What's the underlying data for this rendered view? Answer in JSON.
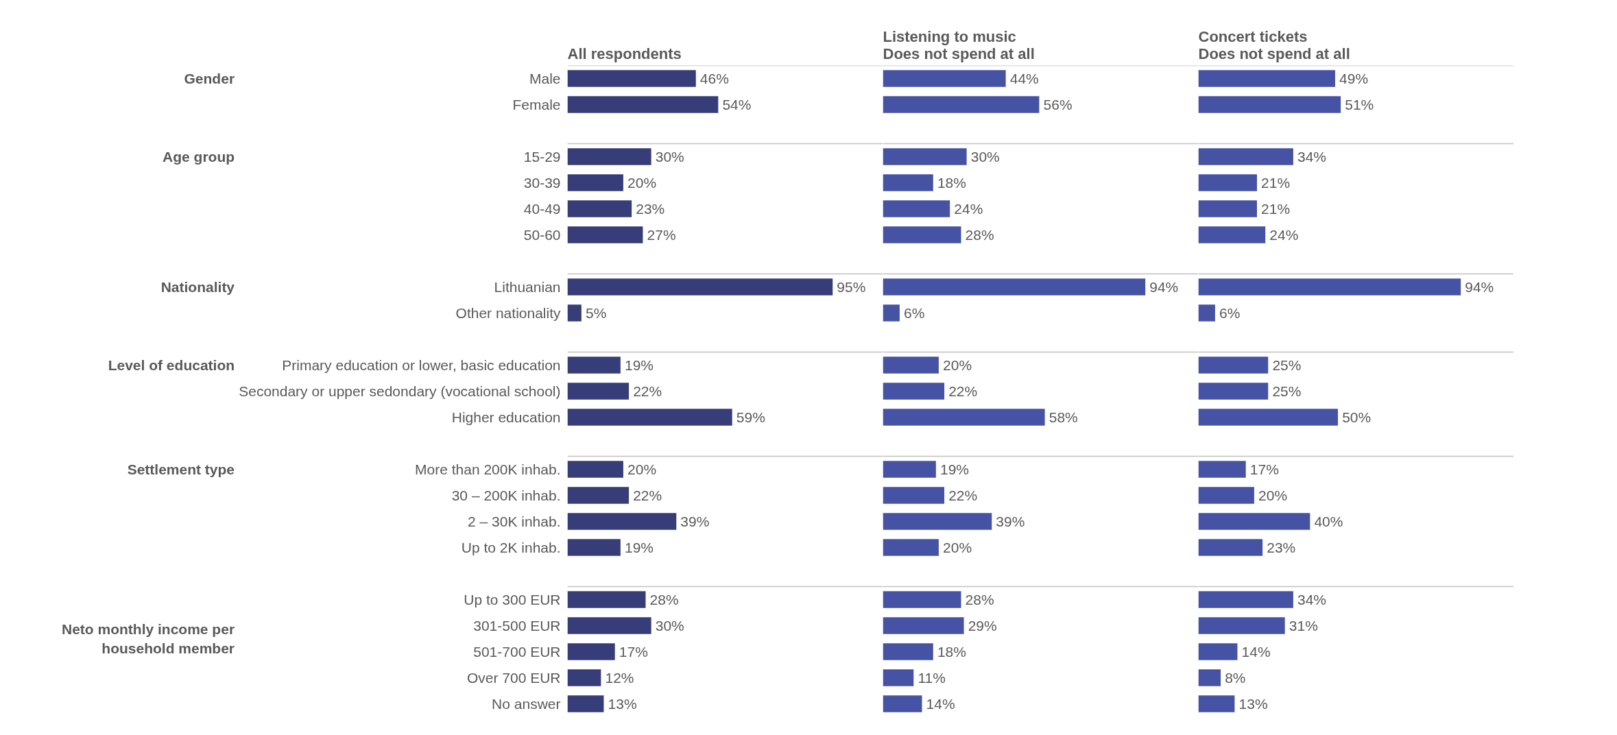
{
  "chart_data": [
    {
      "type": "bar",
      "orientation": "horizontal",
      "title": "All respondents",
      "tick_labels": "y",
      "xlim": [
        0,
        113
      ],
      "categories": [
        "Male",
        "Female",
        null,
        "15-29",
        "30-39",
        "40-49",
        "50-60",
        null,
        "Lithuanian",
        "Other nationality",
        null,
        "Primary education or lower, basic education",
        "Secondary or upper sedondary (vocational school)",
        "Higher education",
        null,
        "More than 200K inhab.",
        "30 – 200K inhab.",
        "2 – 30K inhab.",
        "Up to 2K inhab.",
        null,
        "Up to 300 EUR",
        "301-500 EUR",
        "501-700 EUR",
        "Over 700 EUR",
        "No answer"
      ],
      "annotations": [
        "Gender",
        "Age group",
        "Nationality",
        "Level of education",
        "Settlement type",
        "Neto monthly income per\nhousehold member"
      ],
      "series": [
        {
          "color": "#363d78",
          "values": [
            46,
            54,
            null,
            30,
            20,
            23,
            27,
            null,
            95,
            5,
            null,
            19,
            22,
            59,
            null,
            20,
            22,
            39,
            19,
            null,
            28,
            30,
            17,
            12,
            13
          ],
          "value_labels": [
            "46%",
            "54%",
            null,
            "30%",
            "20%",
            "23%",
            "27%",
            null,
            "95%",
            "5%",
            null,
            "19%",
            "22%",
            "59%",
            null,
            "20%",
            "22%",
            "39%",
            "19%",
            null,
            "28%",
            "30%",
            "17%",
            "12%",
            "13%"
          ]
        }
      ]
    },
    {
      "type": "bar",
      "orientation": "horizontal",
      "title": "Listening to music\nDoes not spend at all",
      "tick_labels": false,
      "xlim": [
        0,
        113
      ],
      "series": [
        {
          "color": "#4653a5",
          "values": [
            44,
            56,
            null,
            30,
            18,
            24,
            28,
            null,
            94,
            6,
            null,
            20,
            22,
            58,
            null,
            19,
            22,
            39,
            20,
            null,
            28,
            29,
            18,
            11,
            14
          ],
          "value_labels": [
            "44%",
            "56%",
            null,
            "30%",
            "18%",
            "24%",
            "28%",
            null,
            "94%",
            "6%",
            null,
            "20%",
            "22%",
            "58%",
            null,
            "19%",
            "22%",
            "39%",
            "20%",
            null,
            "28%",
            "29%",
            "18%",
            "11%",
            "14%"
          ]
        }
      ]
    },
    {
      "type": "bar",
      "orientation": "horizontal",
      "title": "Concert tickets\nDoes not spend at all",
      "tick_labels": false,
      "xlim": [
        0,
        113
      ],
      "series": [
        {
          "color": "#4653a5",
          "values": [
            49,
            51,
            null,
            34,
            21,
            21,
            24,
            null,
            94,
            6,
            null,
            25,
            25,
            50,
            null,
            17,
            20,
            40,
            23,
            null,
            34,
            31,
            14,
            8,
            13
          ],
          "value_labels": [
            "49%",
            "51%",
            null,
            "34%",
            "21%",
            "21%",
            "24%",
            null,
            "94%",
            "6%",
            null,
            "25%",
            "25%",
            "50%",
            null,
            "17%",
            "20%",
            "40%",
            "23%",
            null,
            "34%",
            "31%",
            "14%",
            "8%",
            "13%"
          ]
        }
      ]
    }
  ]
}
